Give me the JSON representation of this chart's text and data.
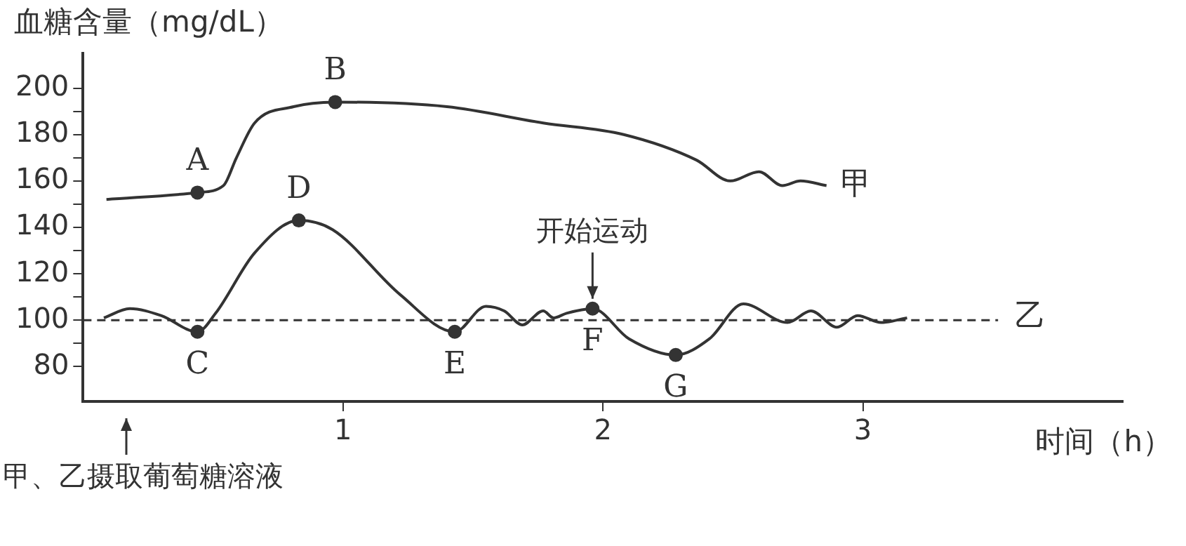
{
  "chart_data": {
    "type": "line",
    "ylabel": "血糖含量（mg/dL）",
    "xlabel": "时间（h）",
    "xlim": [
      0,
      4
    ],
    "xticks": [
      1,
      2,
      3
    ],
    "ylim": [
      65,
      215
    ],
    "yticks": [
      80,
      {
        "value": 90,
        "label": null
      },
      100,
      {
        "value": 110,
        "label": null
      },
      120,
      {
        "value": 130,
        "label": null
      },
      140,
      {
        "value": 150,
        "label": null
      },
      160,
      {
        "value": 170,
        "label": null
      },
      180,
      {
        "value": 190,
        "label": null
      },
      200
    ],
    "grid": false,
    "legend": false,
    "marker": "none",
    "line_style": "solid",
    "series": [
      {
        "name": "甲",
        "color": "#333333",
        "x": [
          0.09,
          0.44,
          0.54,
          0.59,
          0.66,
          0.81,
          0.97,
          1.4,
          1.77,
          2.08,
          2.36,
          2.49,
          2.6,
          2.69,
          2.76,
          2.86
        ],
        "values": [
          152,
          155,
          158,
          170,
          185,
          192,
          194,
          192,
          185,
          180,
          169,
          160,
          164,
          158,
          160,
          158
        ],
        "value_labels": [
          null,
          "A",
          null,
          null,
          null,
          null,
          "B",
          null,
          null,
          null,
          null,
          null,
          null,
          null,
          null,
          null
        ]
      },
      {
        "name": "乙",
        "color": "#333333",
        "x": [
          0.08,
          0.18,
          0.3,
          0.44,
          0.51,
          0.66,
          0.83,
          0.96,
          1.22,
          1.43,
          1.55,
          1.62,
          1.69,
          1.77,
          1.81,
          1.86,
          1.96,
          2.1,
          2.28,
          2.41,
          2.54,
          2.71,
          2.8,
          2.9,
          2.98,
          3.07,
          3.17
        ],
        "values": [
          101,
          105,
          102,
          95,
          103,
          129,
          143,
          139,
          111,
          95,
          106,
          104,
          98,
          104,
          101,
          103,
          105,
          92,
          85,
          92,
          107,
          99,
          104,
          97,
          102,
          99,
          101
        ],
        "value_labels": [
          null,
          null,
          null,
          "C",
          null,
          null,
          "D",
          null,
          null,
          "E",
          null,
          null,
          null,
          null,
          null,
          null,
          "F",
          null,
          "G",
          null,
          null,
          null,
          null,
          null,
          null,
          null,
          null
        ]
      }
    ],
    "ref_lines": [
      {
        "axis": "y",
        "value": 100,
        "label": null,
        "line_style": "dashed",
        "color": "#333333"
      }
    ],
    "annotations": [
      {
        "text": "开始运动",
        "x": 1.96,
        "y": 105
      },
      "甲、乙摄取葡萄糖溶液"
    ]
  }
}
